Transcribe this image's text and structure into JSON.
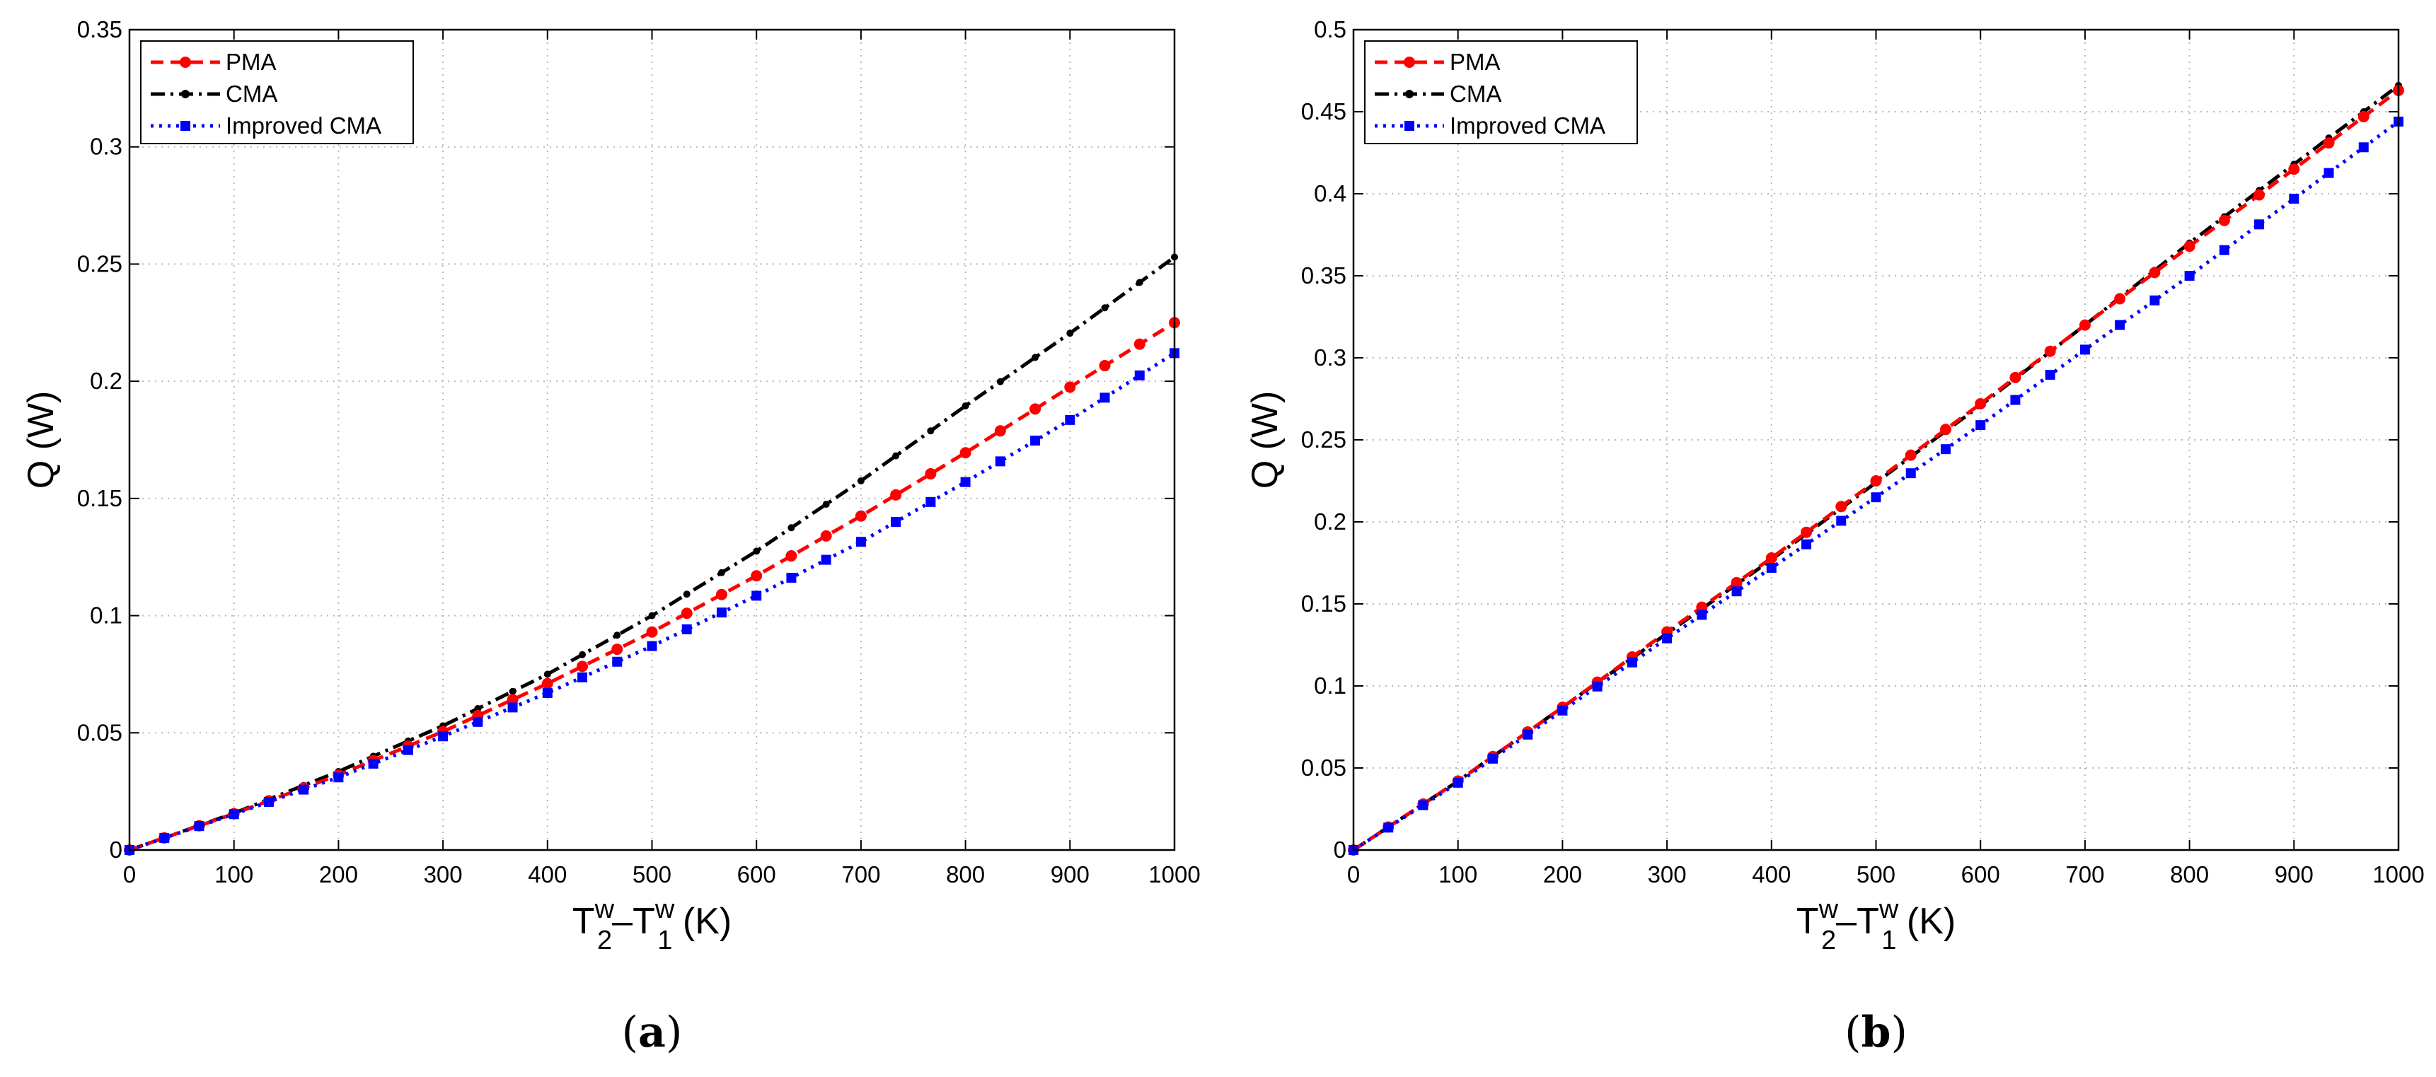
{
  "chart_data": [
    {
      "type": "line",
      "panel_label": "a",
      "xlabel": {
        "base1": "T",
        "sup1": "w",
        "sub1": "2",
        "dash": "–",
        "base2": "T",
        "sup2": "w",
        "sub2": "1",
        "unit": " (K)"
      },
      "ylabel": "Q (W)",
      "xlim": [
        0,
        1000
      ],
      "ylim": [
        0,
        0.35
      ],
      "xticks": [
        "0",
        "100",
        "200",
        "300",
        "400",
        "500",
        "600",
        "700",
        "800",
        "900",
        "1000"
      ],
      "yticks": [
        "0",
        "0.05",
        "0.1",
        "0.15",
        "0.2",
        "0.25",
        "0.3",
        "0.35"
      ],
      "grid": true,
      "legend_position": "top-left",
      "x": [
        0,
        100,
        200,
        300,
        400,
        500,
        600,
        700,
        800,
        900,
        1000
      ],
      "series": [
        {
          "name": "PMA",
          "color": "#ff0000",
          "style": "dashed",
          "marker": "circle",
          "values": [
            0,
            0.0155,
            0.032,
            0.0505,
            0.071,
            0.093,
            0.117,
            0.1425,
            0.1695,
            0.1975,
            0.225
          ]
        },
        {
          "name": "CMA",
          "color": "#000000",
          "style": "dashdot",
          "marker": "dot",
          "values": [
            0,
            0.0157,
            0.0335,
            0.053,
            0.075,
            0.1,
            0.1275,
            0.1575,
            0.1895,
            0.2205,
            0.253
          ]
        },
        {
          "name": "Improved CMA",
          "color": "#0000ff",
          "style": "dotted",
          "marker": "square",
          "values": [
            0,
            0.0153,
            0.031,
            0.0485,
            0.067,
            0.087,
            0.1085,
            0.1315,
            0.157,
            0.1835,
            0.212
          ]
        }
      ]
    },
    {
      "type": "line",
      "panel_label": "b",
      "xlabel": {
        "base1": "T",
        "sup1": "w",
        "sub1": "2",
        "dash": "–",
        "base2": "T",
        "sup2": "w",
        "sub2": "1",
        "unit": " (K)"
      },
      "ylabel": "Q (W)",
      "xlim": [
        0,
        1000
      ],
      "ylim": [
        0,
        0.5
      ],
      "xticks": [
        "0",
        "100",
        "200",
        "300",
        "400",
        "500",
        "600",
        "700",
        "800",
        "900",
        "1000"
      ],
      "yticks": [
        "0",
        "0.05",
        "0.1",
        "0.15",
        "0.2",
        "0.25",
        "0.3",
        "0.35",
        "0.4",
        "0.45",
        "0.5"
      ],
      "grid": true,
      "legend_position": "top-left",
      "x": [
        0,
        100,
        200,
        300,
        400,
        500,
        600,
        700,
        800,
        900,
        1000
      ],
      "series": [
        {
          "name": "PMA",
          "color": "#ff0000",
          "style": "dashed",
          "marker": "circle",
          "values": [
            0,
            0.042,
            0.087,
            0.133,
            0.178,
            0.225,
            0.272,
            0.32,
            0.368,
            0.415,
            0.463
          ]
        },
        {
          "name": "CMA",
          "color": "#000000",
          "style": "dashdot",
          "marker": "dot",
          "values": [
            0,
            0.042,
            0.087,
            0.132,
            0.177,
            0.224,
            0.271,
            0.32,
            0.37,
            0.418,
            0.466
          ]
        },
        {
          "name": "Improved CMA",
          "color": "#0000ff",
          "style": "dotted",
          "marker": "square",
          "values": [
            0,
            0.041,
            0.085,
            0.129,
            0.172,
            0.215,
            0.259,
            0.305,
            0.35,
            0.397,
            0.444
          ]
        }
      ]
    }
  ]
}
